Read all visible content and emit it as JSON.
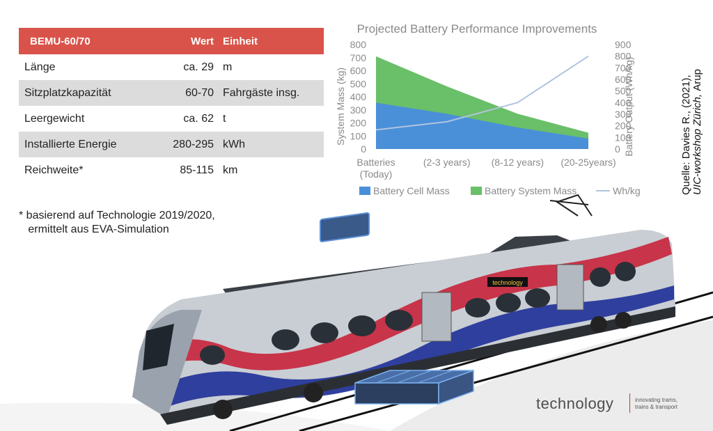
{
  "table": {
    "headers": [
      "BEMU-60/70",
      "Wert",
      "Einheit"
    ],
    "rows": [
      {
        "label": "Länge",
        "value": "ca. 29",
        "unit": "m"
      },
      {
        "label": "Sitzplatzkapazität",
        "value": "60-70",
        "unit": "Fahrgäste insg."
      },
      {
        "label": "Leergewicht",
        "value": "ca. 62",
        "unit": "t"
      },
      {
        "label": "Installierte Energie",
        "value": "280-295",
        "unit": "kWh"
      },
      {
        "label": "Reichweite*",
        "value": "85-115",
        "unit": "km"
      }
    ],
    "header_color": "#d9534a"
  },
  "footnote": {
    "line1": "* basierend auf Technologie 2019/2020,",
    "line2": "   ermittelt aus EVA-Simulation"
  },
  "chart_data": {
    "type": "area",
    "title": "Projected Battery Performance Improvements",
    "categories": [
      "Batteries (Today)",
      "(2-3 years)",
      "(8-12 years)",
      "(20-25years)"
    ],
    "ylabel": "System Mass (kg)",
    "y2label": "Battery Output (Wh/kg)",
    "ylim": [
      0,
      800
    ],
    "y2lim": [
      0,
      900
    ],
    "yticks": [
      0,
      100,
      200,
      300,
      400,
      500,
      600,
      700,
      800
    ],
    "y2ticks": [
      0,
      100,
      200,
      300,
      400,
      500,
      600,
      700,
      800,
      900
    ],
    "series": [
      {
        "name": "Battery Cell Mass",
        "axis": "left",
        "values": [
          355,
          270,
          165,
          80
        ],
        "color": "#4a90d9"
      },
      {
        "name": "Battery System Mass",
        "axis": "left",
        "values": [
          710,
          480,
          270,
          125
        ],
        "color": "#6abf69"
      },
      {
        "name": "Wh/kg",
        "axis": "right",
        "type": "line",
        "values": [
          165,
          235,
          400,
          800
        ],
        "color": "#b0c4de"
      }
    ],
    "legend": "bottom",
    "grid": false
  },
  "source": {
    "line1": "Quelle: Davies R., (2021),",
    "line2": "UIC-workshop Zürich, ",
    "line3": "Arup"
  },
  "scene": {
    "train_label": "technology"
  },
  "brand": {
    "name": "technology",
    "tagline1": "innovating trams,",
    "tagline2": "trains & transport"
  }
}
